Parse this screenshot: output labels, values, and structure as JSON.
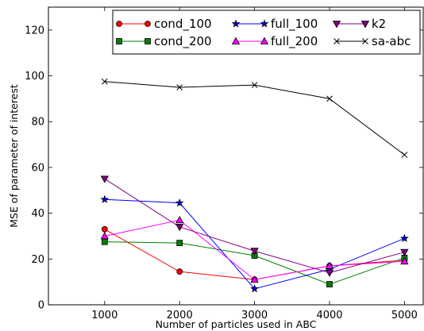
{
  "chart_data": {
    "type": "line",
    "title": "",
    "xlabel": "Number of particles used in ABC",
    "ylabel": "MSE of parameter of interest",
    "x": [
      1000,
      2000,
      3000,
      4000,
      5000
    ],
    "xlim": [
      250,
      5250
    ],
    "ylim": [
      0,
      130
    ],
    "xticks": [
      "1000",
      "2000",
      "3000",
      "4000",
      "5000"
    ],
    "yticks": [
      "0",
      "20",
      "40",
      "60",
      "80",
      "100",
      "120"
    ],
    "grid": false,
    "legend_position": "top",
    "legend_columns": 3,
    "series": [
      {
        "name": "cond_100",
        "color": "#ff0000",
        "marker": "circle",
        "values": [
          33,
          14.5,
          11,
          17,
          19.5
        ]
      },
      {
        "name": "cond_200",
        "color": "#008000",
        "marker": "square",
        "values": [
          27.5,
          27,
          21.5,
          9,
          20.5
        ]
      },
      {
        "name": "full_100",
        "color": "#0000ff",
        "marker": "star",
        "values": [
          46,
          44.5,
          7,
          15.5,
          29
        ]
      },
      {
        "name": "full_200",
        "color": "#ff00ff",
        "marker": "triangle-up",
        "values": [
          30,
          37,
          11,
          17,
          19
        ]
      },
      {
        "name": "k2",
        "color": "#800080",
        "marker": "triangle-down",
        "values": [
          55,
          34,
          23.5,
          14,
          23
        ]
      },
      {
        "name": "sa-abc",
        "color": "#000000",
        "marker": "x",
        "values": [
          97.5,
          95,
          96,
          90,
          65.5
        ]
      }
    ]
  }
}
